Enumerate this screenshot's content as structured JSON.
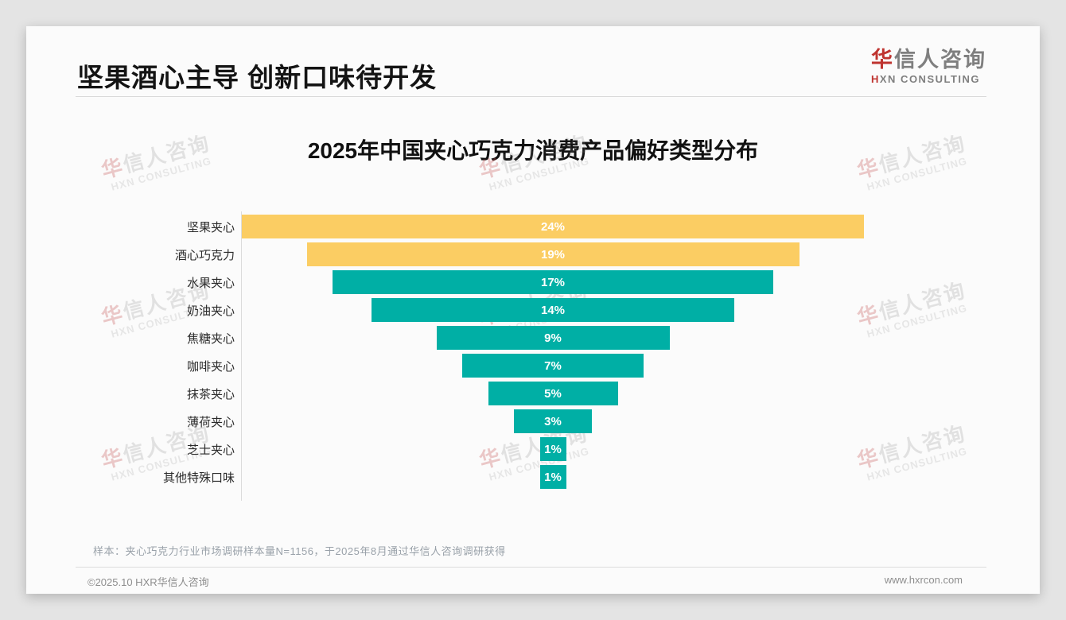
{
  "page": {
    "title": "坚果酒心主导 创新口味待开发",
    "logo": {
      "cn_accent": "华",
      "cn_rest": "信人咨询",
      "en_accent": "H",
      "en_rest": "XN CONSULTING"
    },
    "watermark": {
      "cn_accent": "华",
      "cn_rest": "信人咨询",
      "en": "HXN CONSULTING"
    },
    "sample_note": "样本：夹心巧克力行业市场调研样本量N=1156，于2025年8月通过华信人咨询调研获得",
    "footer": {
      "copyright": "©2025.10 HXR华信人咨询",
      "website": "www.hxrcon.com"
    }
  },
  "chart_data": {
    "type": "bar",
    "variant": "centered-funnel",
    "orientation": "horizontal",
    "title": "2025年中国夹心巧克力消费产品偏好类型分布",
    "categories": [
      "坚果夹心",
      "酒心巧克力",
      "水果夹心",
      "奶油夹心",
      "焦糖夹心",
      "咖啡夹心",
      "抹茶夹心",
      "薄荷夹心",
      "芝士夹心",
      "其他特殊口味"
    ],
    "values": [
      24,
      19,
      17,
      14,
      9,
      7,
      5,
      3,
      1,
      1
    ],
    "value_labels": [
      "24%",
      "19%",
      "17%",
      "14%",
      "9%",
      "7%",
      "5%",
      "3%",
      "1%",
      "1%"
    ],
    "bar_colors": [
      "#fbcd63",
      "#fbcd63",
      "#00afa5",
      "#00afa5",
      "#00afa5",
      "#00afa5",
      "#00afa5",
      "#00afa5",
      "#00afa5",
      "#00afa5"
    ],
    "highlight_color": "#fbcd63",
    "base_color": "#00afa5",
    "value_label_color": "#ffffff",
    "xlim": [
      0,
      24
    ],
    "grid": false,
    "legend": false
  }
}
